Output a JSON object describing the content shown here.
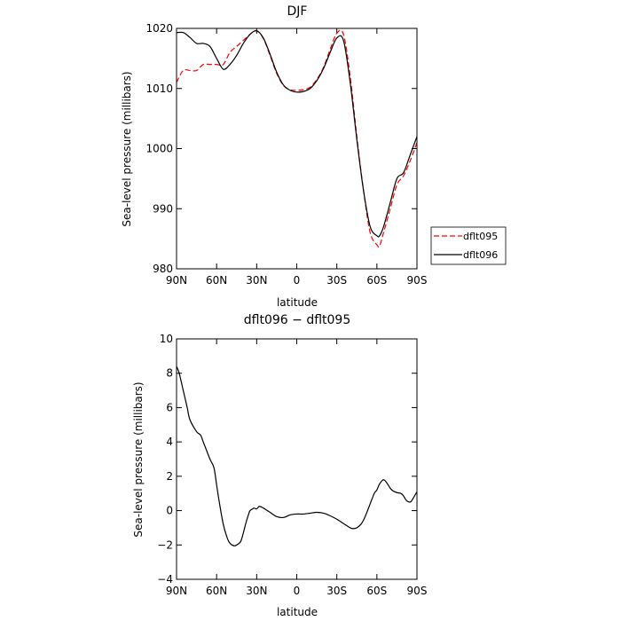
{
  "chart_data": [
    {
      "type": "line",
      "title": "DJF",
      "xlabel": "latitude",
      "ylabel": "Sea-level pressure (millibars)",
      "xlim": [
        -90,
        90
      ],
      "ylim": [
        980,
        1020
      ],
      "xticks": [
        -90,
        -60,
        -30,
        0,
        30,
        60,
        90
      ],
      "xtick_labels": [
        "90N",
        "60N",
        "30N",
        "0",
        "30S",
        "60S",
        "90S"
      ],
      "yticks": [
        980,
        990,
        1000,
        1010,
        1020
      ],
      "ytick_labels": [
        "980",
        "990",
        "1000",
        "1010",
        "1020"
      ],
      "grid": false,
      "legend": "outside-right",
      "series": [
        {
          "name": "dflt095",
          "color": "#ff0000",
          "dash": "dashed",
          "x": [
            -90,
            -85,
            -80,
            -75,
            -70,
            -65,
            -60,
            -55,
            -50,
            -45,
            -40,
            -35,
            -30,
            -25,
            -20,
            -15,
            -10,
            -5,
            0,
            5,
            10,
            15,
            20,
            25,
            30,
            35,
            40,
            45,
            50,
            55,
            60,
            62,
            65,
            70,
            75,
            80,
            85,
            90
          ],
          "y": [
            1011,
            1013,
            1013,
            1013,
            1014,
            1014,
            1014,
            1014,
            1016,
            1017,
            1018,
            1019,
            1019.6,
            1018.3,
            1015.5,
            1012.5,
            1010.5,
            1009.8,
            1009.7,
            1009.8,
            1010.2,
            1011.5,
            1013.5,
            1016.5,
            1019.2,
            1019,
            1012,
            1002,
            993,
            986,
            984,
            983.8,
            986,
            990,
            994,
            995.5,
            998,
            1001
          ]
        },
        {
          "name": "dflt096",
          "color": "#000000",
          "dash": "solid",
          "x": [
            -90,
            -85,
            -80,
            -75,
            -70,
            -65,
            -60,
            -55,
            -50,
            -45,
            -40,
            -35,
            -30,
            -25,
            -20,
            -15,
            -10,
            -5,
            0,
            5,
            10,
            15,
            20,
            25,
            30,
            35,
            40,
            45,
            50,
            55,
            60,
            62,
            65,
            70,
            75,
            80,
            85,
            90
          ],
          "y": [
            1019.3,
            1019.3,
            1018.5,
            1017.5,
            1017.5,
            1017,
            1015,
            1013.2,
            1014,
            1015.5,
            1017.5,
            1019,
            1019.6,
            1018.4,
            1015.7,
            1012.7,
            1010.6,
            1009.7,
            1009.4,
            1009.5,
            1010,
            1011.3,
            1013.3,
            1016,
            1018.4,
            1018,
            1011,
            1001.5,
            993,
            987,
            985.5,
            985.5,
            987,
            991,
            995,
            996,
            999,
            1002
          ]
        }
      ]
    },
    {
      "type": "line",
      "title": "dflt096 − dflt095",
      "xlabel": "latitude",
      "ylabel": "Sea-level pressure (millibars)",
      "xlim": [
        -90,
        90
      ],
      "ylim": [
        -4,
        10
      ],
      "xticks": [
        -90,
        -60,
        -30,
        0,
        30,
        60,
        90
      ],
      "xtick_labels": [
        "90N",
        "60N",
        "30N",
        "0",
        "30S",
        "60S",
        "90S"
      ],
      "yticks": [
        -4,
        -2,
        0,
        2,
        4,
        6,
        8,
        10
      ],
      "ytick_labels": [
        "−4",
        "−2",
        "0",
        "2",
        "4",
        "6",
        "8",
        "10"
      ],
      "grid": false,
      "series": [
        {
          "color": "#000000",
          "dash": "solid",
          "x": [
            -90,
            -88,
            -85,
            -82,
            -80,
            -75,
            -72,
            -70,
            -68,
            -65,
            -62,
            -60,
            -58,
            -55,
            -52,
            -50,
            -47,
            -45,
            -42,
            -40,
            -38,
            -36,
            -35,
            -33,
            -32,
            -30,
            -28,
            -25,
            -22,
            -20,
            -15,
            -10,
            -5,
            0,
            5,
            10,
            15,
            20,
            25,
            30,
            35,
            40,
            42,
            45,
            48,
            50,
            52,
            55,
            58,
            60,
            62,
            65,
            68,
            70,
            72,
            75,
            78,
            80,
            82,
            85,
            87,
            90
          ],
          "y": [
            8.4,
            8.0,
            7.0,
            6.0,
            5.3,
            4.6,
            4.4,
            4.0,
            3.6,
            3.0,
            2.5,
            1.5,
            0.5,
            -0.8,
            -1.6,
            -1.9,
            -2.05,
            -2.0,
            -1.8,
            -1.3,
            -0.7,
            -0.2,
            0,
            0.1,
            0.15,
            0.1,
            0.25,
            0.15,
            0,
            -0.1,
            -0.35,
            -0.4,
            -0.25,
            -0.2,
            -0.2,
            -0.15,
            -0.1,
            -0.15,
            -0.3,
            -0.5,
            -0.75,
            -1.0,
            -1.05,
            -1.0,
            -0.8,
            -0.55,
            -0.2,
            0.4,
            1.0,
            1.2,
            1.55,
            1.8,
            1.55,
            1.3,
            1.15,
            1.05,
            1.0,
            0.85,
            0.6,
            0.5,
            0.7,
            1.1
          ]
        }
      ]
    }
  ]
}
